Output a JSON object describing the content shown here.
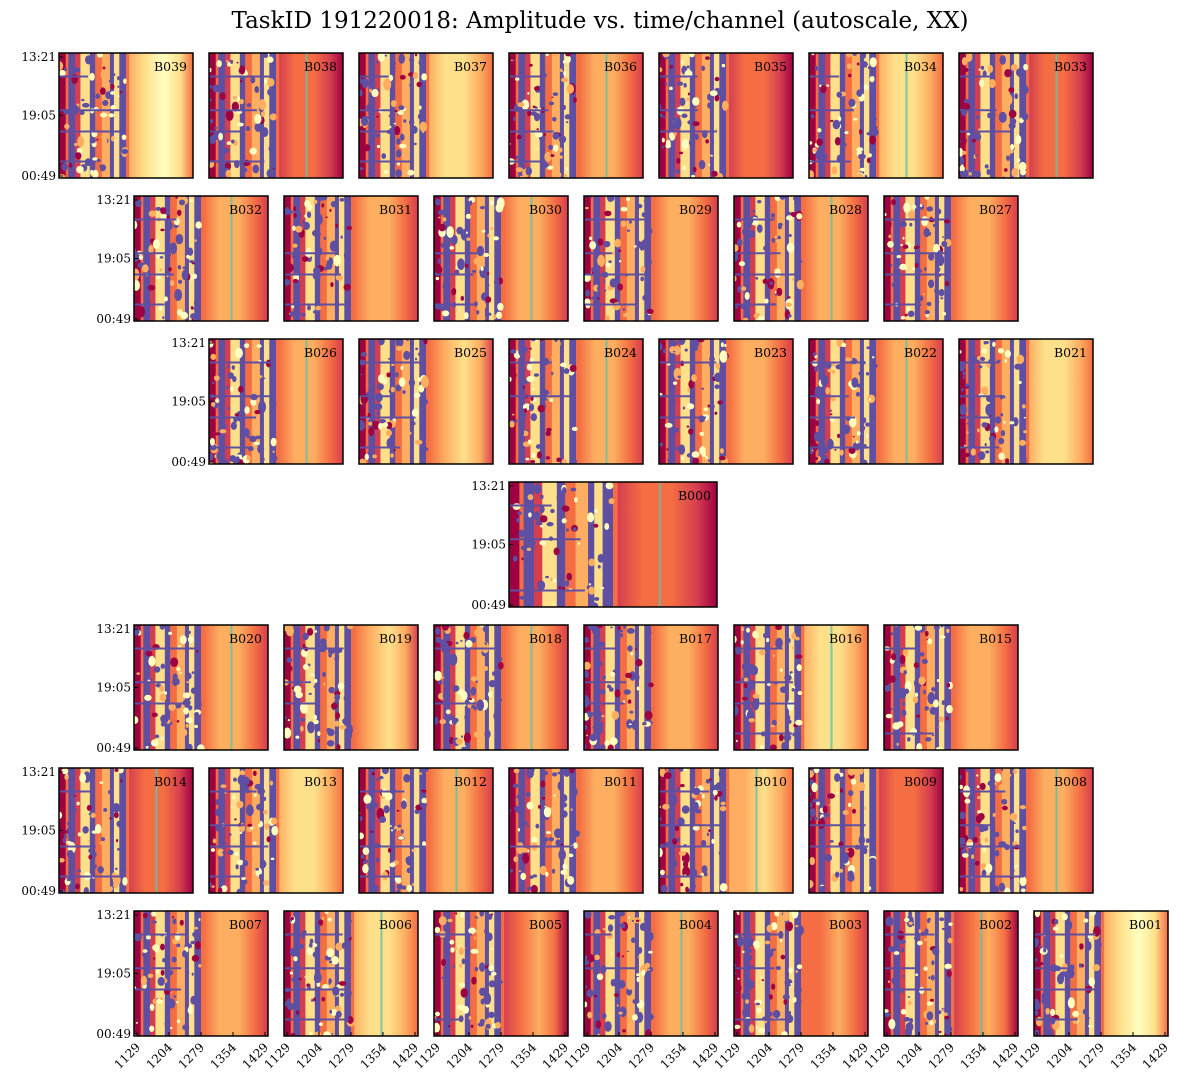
{
  "chart_data": {
    "type": "heatmap",
    "title": "TaskID 191220018: Amplitude vs. time/channel (autoscale, XX)",
    "xlabel": "",
    "ylabel": "",
    "x_tick_labels": [
      "1129",
      "1204",
      "1279",
      "1354",
      "1429"
    ],
    "y_tick_labels": [
      "13:21",
      "19:05",
      "00:49"
    ],
    "colormap": "Spectral",
    "colors": {
      "flagged": "#5e4fa2",
      "low": "#9e0142",
      "mid_low": "#d53e4f",
      "mid": "#f46d43",
      "mid_high": "#fdae61",
      "high": "#fee08b",
      "peak": "#ffffbf",
      "rfi_line": "#66c2a5"
    },
    "rows": [
      {
        "panels": [
          {
            "beam": "B039",
            "band": 0.88,
            "rfi": false
          },
          {
            "beam": "B038",
            "band": 0.3,
            "rfi": true
          },
          {
            "beam": "B037",
            "band": 0.72,
            "rfi": false
          },
          {
            "beam": "B036",
            "band": 0.58,
            "rfi": true
          },
          {
            "beam": "B035",
            "band": 0.32,
            "rfi": false
          },
          {
            "beam": "B034",
            "band": 0.78,
            "rfi": true
          },
          {
            "beam": "B033",
            "band": 0.35,
            "rfi": true
          }
        ]
      },
      {
        "panels": [
          {
            "beam": "B032",
            "band": 0.6,
            "rfi": true
          },
          {
            "beam": "B031",
            "band": 0.45,
            "rfi": false
          },
          {
            "beam": "B030",
            "band": 0.62,
            "rfi": true
          },
          {
            "beam": "B029",
            "band": 0.55,
            "rfi": false
          },
          {
            "beam": "B028",
            "band": 0.6,
            "rfi": true
          },
          {
            "beam": "B027",
            "band": 0.5,
            "rfi": false
          }
        ]
      },
      {
        "panels": [
          {
            "beam": "B026",
            "band": 0.58,
            "rfi": true
          },
          {
            "beam": "B025",
            "band": 0.66,
            "rfi": false
          },
          {
            "beam": "B024",
            "band": 0.52,
            "rfi": true
          },
          {
            "beam": "B023",
            "band": 0.48,
            "rfi": false
          },
          {
            "beam": "B022",
            "band": 0.5,
            "rfi": true
          },
          {
            "beam": "B021",
            "band": 0.7,
            "rfi": false
          }
        ]
      },
      {
        "panels": [
          {
            "beam": "B000",
            "band": 0.36,
            "rfi": true
          }
        ]
      },
      {
        "panels": [
          {
            "beam": "B020",
            "band": 0.62,
            "rfi": true
          },
          {
            "beam": "B019",
            "band": 0.66,
            "rfi": false
          },
          {
            "beam": "B018",
            "band": 0.5,
            "rfi": true
          },
          {
            "beam": "B017",
            "band": 0.58,
            "rfi": false
          },
          {
            "beam": "B016",
            "band": 0.72,
            "rfi": true
          },
          {
            "beam": "B015",
            "band": 0.45,
            "rfi": false
          }
        ]
      },
      {
        "panels": [
          {
            "beam": "B014",
            "band": 0.32,
            "rfi": true
          },
          {
            "beam": "B013",
            "band": 0.72,
            "rfi": false
          },
          {
            "beam": "B012",
            "band": 0.52,
            "rfi": true
          },
          {
            "beam": "B011",
            "band": 0.45,
            "rfi": false
          },
          {
            "beam": "B010",
            "band": 0.68,
            "rfi": true
          },
          {
            "beam": "B009",
            "band": 0.35,
            "rfi": false
          },
          {
            "beam": "B008",
            "band": 0.48,
            "rfi": true
          }
        ]
      },
      {
        "panels": [
          {
            "beam": "B007",
            "band": 0.48,
            "rfi": false
          },
          {
            "beam": "B006",
            "band": 0.7,
            "rfi": true
          },
          {
            "beam": "B005",
            "band": 0.42,
            "rfi": false
          },
          {
            "beam": "B004",
            "band": 0.5,
            "rfi": true
          },
          {
            "beam": "B003",
            "band": 0.44,
            "rfi": false
          },
          {
            "beam": "B002",
            "band": 0.42,
            "rfi": true
          },
          {
            "beam": "B001",
            "band": 0.9,
            "rfi": false
          }
        ]
      }
    ]
  }
}
